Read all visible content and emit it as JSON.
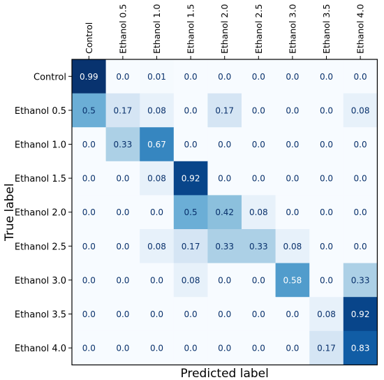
{
  "chart_data": {
    "type": "heatmap",
    "xlabel": "Predicted label",
    "ylabel": "True label",
    "x_categories": [
      "Control",
      "Ethanol 0.5",
      "Ethanol 1.0",
      "Ethanol 1.5",
      "Ethanol 2.0",
      "Ethanol 2.5",
      "Ethanol 3.0",
      "Ethanol 3.5",
      "Ethanol 4.0"
    ],
    "y_categories": [
      "Control",
      "Ethanol 0.5",
      "Ethanol 1.0",
      "Ethanol 1.5",
      "Ethanol 2.0",
      "Ethanol 2.5",
      "Ethanol 3.0",
      "Ethanol 3.5",
      "Ethanol 4.0"
    ],
    "values": [
      [
        "0.99",
        "0.0",
        "0.01",
        "0.0",
        "0.0",
        "0.0",
        "0.0",
        "0.0",
        "0.0"
      ],
      [
        "0.5",
        "0.17",
        "0.08",
        "0.0",
        "0.17",
        "0.0",
        "0.0",
        "0.0",
        "0.08"
      ],
      [
        "0.0",
        "0.33",
        "0.67",
        "0.0",
        "0.0",
        "0.0",
        "0.0",
        "0.0",
        "0.0"
      ],
      [
        "0.0",
        "0.0",
        "0.08",
        "0.92",
        "0.0",
        "0.0",
        "0.0",
        "0.0",
        "0.0"
      ],
      [
        "0.0",
        "0.0",
        "0.0",
        "0.5",
        "0.42",
        "0.08",
        "0.0",
        "0.0",
        "0.0"
      ],
      [
        "0.0",
        "0.0",
        "0.08",
        "0.17",
        "0.33",
        "0.33",
        "0.08",
        "0.0",
        "0.0"
      ],
      [
        "0.0",
        "0.0",
        "0.0",
        "0.08",
        "0.0",
        "0.0",
        "0.58",
        "0.0",
        "0.33"
      ],
      [
        "0.0",
        "0.0",
        "0.0",
        "0.0",
        "0.0",
        "0.0",
        "0.0",
        "0.08",
        "0.92"
      ],
      [
        "0.0",
        "0.0",
        "0.0",
        "0.0",
        "0.0",
        "0.0",
        "0.0",
        "0.17",
        "0.83"
      ]
    ],
    "color_range": [
      0,
      1
    ],
    "colormap": "Blues",
    "grid": false,
    "legend": "none"
  }
}
